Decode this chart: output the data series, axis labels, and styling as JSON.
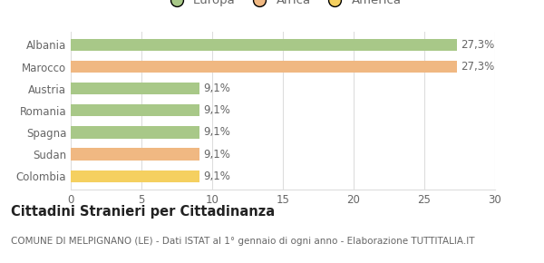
{
  "categories": [
    "Albania",
    "Marocco",
    "Austria",
    "Romania",
    "Spagna",
    "Sudan",
    "Colombia"
  ],
  "values": [
    27.3,
    27.3,
    9.1,
    9.1,
    9.1,
    9.1,
    9.1
  ],
  "labels": [
    "27,3%",
    "27,3%",
    "9,1%",
    "9,1%",
    "9,1%",
    "9,1%",
    "9,1%"
  ],
  "bar_colors": [
    "#a8c888",
    "#f0b882",
    "#a8c888",
    "#a8c888",
    "#a8c888",
    "#f0b882",
    "#f5d060"
  ],
  "legend_items": [
    {
      "label": "Europa",
      "color": "#a8c888"
    },
    {
      "label": "Africa",
      "color": "#f0b882"
    },
    {
      "label": "America",
      "color": "#f5d060"
    }
  ],
  "xlim": [
    0,
    30
  ],
  "xticks": [
    0,
    5,
    10,
    15,
    20,
    25,
    30
  ],
  "title": "Cittadini Stranieri per Cittadinanza",
  "subtitle": "COMUNE DI MELPIGNANO (LE) - Dati ISTAT al 1° gennaio di ogni anno - Elaborazione TUTTITALIA.IT",
  "background_color": "#ffffff",
  "grid_color": "#dddddd",
  "bar_height": 0.55,
  "label_fontsize": 8.5,
  "title_fontsize": 10.5,
  "subtitle_fontsize": 7.5,
  "tick_fontsize": 8.5,
  "legend_fontsize": 9.5,
  "text_color": "#666666",
  "title_color": "#222222"
}
